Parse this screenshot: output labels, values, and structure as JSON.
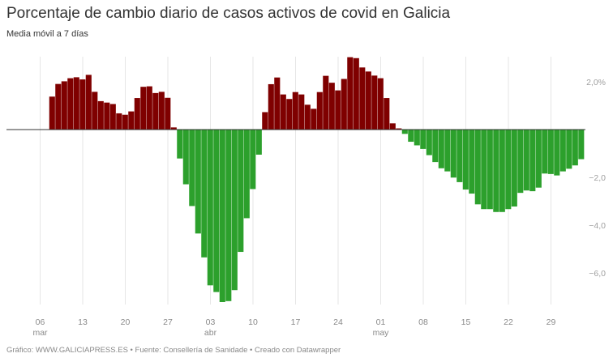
{
  "header": {
    "title": "Porcentaje de cambio diario de casos activos de covid en Galicia",
    "subtitle": "Media móvil a 7 días"
  },
  "footer": {
    "text": "Gráfico: WWW.GALICIAPRESS.ES • Fuente: Consellería de Sanidade • Creado con Datawrapper"
  },
  "colors": {
    "positive": "#7f0000",
    "negative": "#2ca02c",
    "zero_line": "#333333",
    "grid": "#e6e6e6"
  },
  "chart_data": {
    "type": "bar",
    "title": "Porcentaje de cambio diario de casos activos de covid en Galicia",
    "subtitle": "Media móvil a 7 días",
    "xlabel": "",
    "ylabel": "",
    "ylim": [
      -7.4,
      3.1
    ],
    "y_ticks": [
      {
        "value": 2,
        "label": "2,0%"
      },
      {
        "value": -2,
        "label": "−2,0"
      },
      {
        "value": -4,
        "label": "−4,0"
      },
      {
        "value": -6,
        "label": "−6,0"
      }
    ],
    "x_ticks": [
      {
        "day_index": 0,
        "label": "06",
        "month": "mar"
      },
      {
        "day_index": 7,
        "label": "13",
        "month": ""
      },
      {
        "day_index": 14,
        "label": "20",
        "month": ""
      },
      {
        "day_index": 21,
        "label": "27",
        "month": ""
      },
      {
        "day_index": 28,
        "label": "03",
        "month": "abr"
      },
      {
        "day_index": 35,
        "label": "10",
        "month": ""
      },
      {
        "day_index": 42,
        "label": "17",
        "month": ""
      },
      {
        "day_index": 49,
        "label": "24",
        "month": ""
      },
      {
        "day_index": 56,
        "label": "01",
        "month": "may"
      },
      {
        "day_index": 63,
        "label": "08",
        "month": ""
      },
      {
        "day_index": 70,
        "label": "15",
        "month": ""
      },
      {
        "day_index": 77,
        "label": "22",
        "month": ""
      },
      {
        "day_index": 84,
        "label": "29",
        "month": ""
      }
    ],
    "grid": {
      "vertical": true,
      "horizontal": false
    },
    "legend": null,
    "first_day_index": 2,
    "start_date": "08 mar",
    "end_date": "03 jun",
    "x": [
      "08 mar",
      "09 mar",
      "10 mar",
      "11 mar",
      "12 mar",
      "13 mar",
      "14 mar",
      "15 mar",
      "16 mar",
      "17 mar",
      "18 mar",
      "19 mar",
      "20 mar",
      "21 mar",
      "22 mar",
      "23 mar",
      "24 mar",
      "25 mar",
      "26 mar",
      "27 mar",
      "28 mar",
      "29 mar",
      "30 mar",
      "31 mar",
      "01 abr",
      "02 abr",
      "03 abr",
      "04 abr",
      "05 abr",
      "06 abr",
      "07 abr",
      "08 abr",
      "09 abr",
      "10 abr",
      "11 abr",
      "12 abr",
      "13 abr",
      "14 abr",
      "15 abr",
      "16 abr",
      "17 abr",
      "18 abr",
      "19 abr",
      "20 abr",
      "21 abr",
      "22 abr",
      "23 abr",
      "24 abr",
      "25 abr",
      "26 abr",
      "27 abr",
      "28 abr",
      "29 abr",
      "30 abr",
      "01 may",
      "02 may",
      "03 may",
      "04 may",
      "05 may",
      "06 may",
      "07 may",
      "08 may",
      "09 may",
      "10 may",
      "11 may",
      "12 may",
      "13 may",
      "14 may",
      "15 may",
      "16 may",
      "17 may",
      "18 may",
      "19 may",
      "20 may",
      "21 may",
      "22 may",
      "23 may",
      "24 may",
      "25 may",
      "26 may",
      "27 may",
      "28 may",
      "29 may",
      "30 may",
      "31 may",
      "01 jun",
      "02 jun",
      "03 jun"
    ],
    "values": [
      1.38,
      1.91,
      2.02,
      2.15,
      2.19,
      2.1,
      2.29,
      1.58,
      1.19,
      1.13,
      1.07,
      0.68,
      0.62,
      0.76,
      1.32,
      1.79,
      1.81,
      1.53,
      1.58,
      1.33,
      0.09,
      -1.21,
      -2.29,
      -3.2,
      -4.35,
      -5.35,
      -6.52,
      -6.8,
      -7.22,
      -7.18,
      -6.72,
      -5.12,
      -3.71,
      -2.49,
      -1.05,
      0.73,
      1.9,
      2.18,
      1.47,
      1.28,
      1.57,
      1.47,
      1.04,
      0.87,
      1.57,
      2.25,
      1.96,
      1.64,
      2.12,
      3.03,
      2.99,
      2.6,
      2.43,
      2.26,
      2.15,
      1.32,
      0.26,
      0.05,
      -0.18,
      -0.51,
      -0.66,
      -0.81,
      -1.07,
      -1.36,
      -1.62,
      -1.75,
      -2.01,
      -2.2,
      -2.51,
      -2.68,
      -3.13,
      -3.33,
      -3.33,
      -3.45,
      -3.45,
      -3.33,
      -3.22,
      -2.65,
      -2.55,
      -2.58,
      -2.43,
      -1.84,
      -1.86,
      -1.92,
      -1.75,
      -1.64,
      -1.5,
      -1.24
    ]
  }
}
